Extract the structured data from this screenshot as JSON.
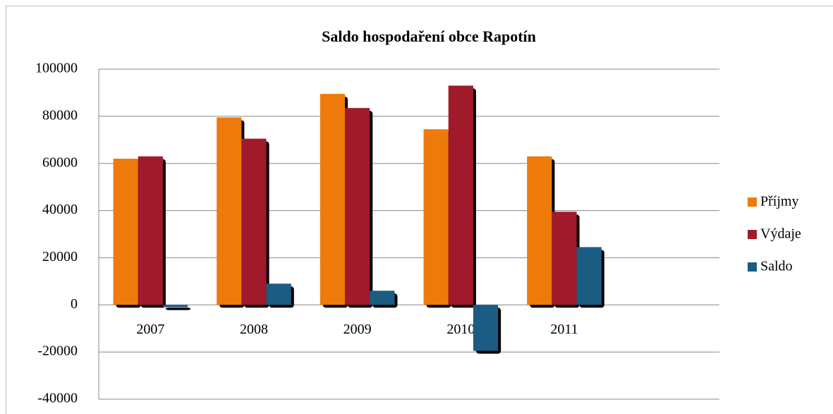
{
  "chart_data": {
    "type": "bar",
    "title": "Saldo hospodaření obce Rapotín",
    "categories": [
      "2007",
      "2008",
      "2009",
      "2010",
      "2011",
      null
    ],
    "series": [
      {
        "name": "Příjmy",
        "color": "#ef7a0c",
        "values": [
          62000,
          79500,
          89500,
          74500,
          63000,
          null
        ]
      },
      {
        "name": "Výdaje",
        "color": "#a01a2c",
        "values": [
          63000,
          70500,
          83500,
          93000,
          39500,
          null
        ]
      },
      {
        "name": "Saldo",
        "color": "#1c5c82",
        "values": [
          -1000,
          9000,
          6000,
          -19500,
          24500,
          null
        ]
      }
    ],
    "ylim": [
      -40000,
      100000
    ],
    "yticks": [
      -40000,
      -20000,
      0,
      20000,
      40000,
      60000,
      80000,
      100000
    ],
    "grid": true,
    "legend": "right"
  }
}
